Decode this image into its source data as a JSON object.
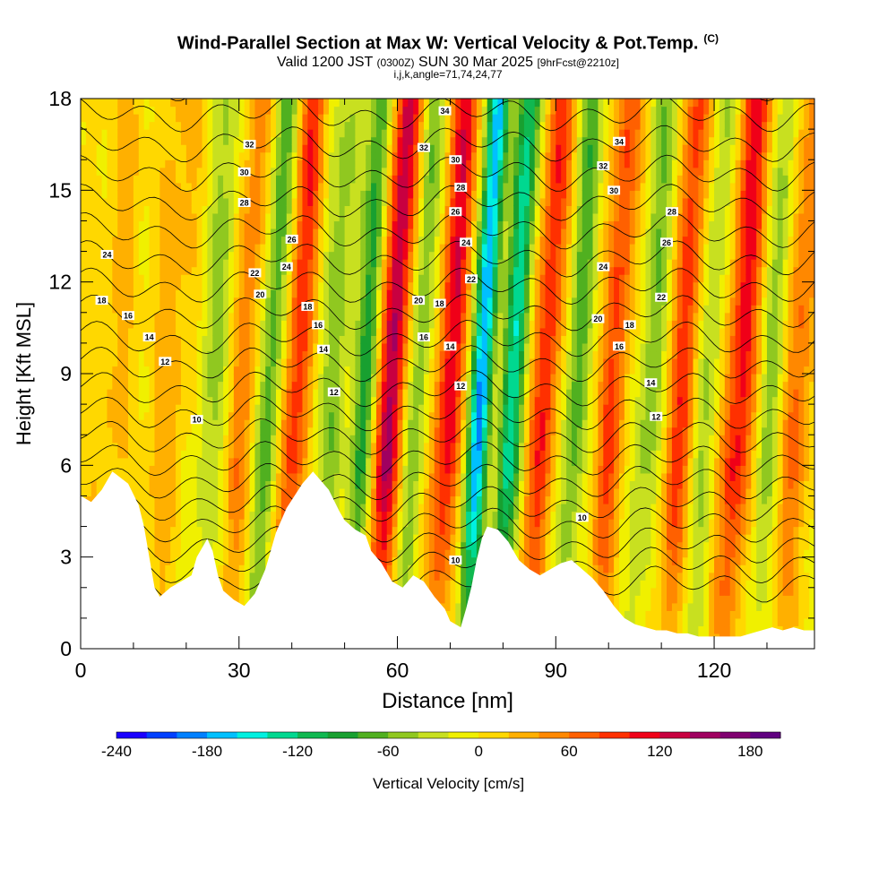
{
  "chart_data": {
    "type": "heatmap",
    "title": "Wind-Parallel Section at Max W: Vertical Velocity & Pot.Temp.",
    "copyright": "(C)",
    "subtitle_main": "Valid 1200 JST",
    "subtitle_utc": "(0300Z)",
    "subtitle_date": "SUN 30 Mar 2025",
    "subtitle_fcst": "[9hrFcst@2210z]",
    "subtitle_ijk": "i,j,k,angle=71,74,24,77",
    "xlabel": "Distance [nm]",
    "ylabel": "Height [Kft MSL]",
    "xlim": [
      0,
      139
    ],
    "ylim": [
      0,
      18
    ],
    "x_ticks": [
      0,
      30,
      60,
      90,
      120
    ],
    "y_ticks": [
      0,
      3,
      6,
      9,
      12,
      15,
      18
    ],
    "colorbar": {
      "label": "Vertical Velocity [cm/s]",
      "tick_labels": [
        "-240",
        "-180",
        "-120",
        "-60",
        "0",
        "60",
        "120",
        "180"
      ],
      "tick_values": [
        -240,
        -180,
        -120,
        -60,
        0,
        60,
        120,
        180
      ],
      "min": -240,
      "max": 200,
      "colors": [
        "#1a00ff",
        "#0040ff",
        "#0080ff",
        "#00c0ff",
        "#00f0e0",
        "#00d890",
        "#10b850",
        "#18a030",
        "#50b020",
        "#90c820",
        "#c8e020",
        "#f0f000",
        "#ffd800",
        "#ffb000",
        "#ff8800",
        "#ff6000",
        "#ff3000",
        "#f00018",
        "#c80040",
        "#a00060",
        "#800070",
        "#600080"
      ]
    },
    "contour_labels": [
      {
        "value": "32",
        "x": 32,
        "y": 16.5
      },
      {
        "value": "30",
        "x": 31,
        "y": 15.6
      },
      {
        "value": "28",
        "x": 31,
        "y": 14.6
      },
      {
        "value": "26",
        "x": 40,
        "y": 13.4
      },
      {
        "value": "24",
        "x": 5,
        "y": 12.9
      },
      {
        "value": "24",
        "x": 39,
        "y": 12.5
      },
      {
        "value": "22",
        "x": 33,
        "y": 12.3
      },
      {
        "value": "20",
        "x": 34,
        "y": 11.6
      },
      {
        "value": "18",
        "x": 4,
        "y": 11.4
      },
      {
        "value": "18",
        "x": 43,
        "y": 11.2
      },
      {
        "value": "16",
        "x": 9,
        "y": 10.9
      },
      {
        "value": "16",
        "x": 45,
        "y": 10.6
      },
      {
        "value": "14",
        "x": 13,
        "y": 10.2
      },
      {
        "value": "14",
        "x": 46,
        "y": 9.8
      },
      {
        "value": "12",
        "x": 16,
        "y": 9.4
      },
      {
        "value": "12",
        "x": 48,
        "y": 8.4
      },
      {
        "value": "10",
        "x": 22,
        "y": 7.5
      },
      {
        "value": "34",
        "x": 69,
        "y": 17.6
      },
      {
        "value": "32",
        "x": 65,
        "y": 16.4
      },
      {
        "value": "30",
        "x": 71,
        "y": 16.0
      },
      {
        "value": "28",
        "x": 72,
        "y": 15.1
      },
      {
        "value": "26",
        "x": 71,
        "y": 14.3
      },
      {
        "value": "24",
        "x": 73,
        "y": 13.3
      },
      {
        "value": "22",
        "x": 74,
        "y": 12.1
      },
      {
        "value": "20",
        "x": 64,
        "y": 11.4
      },
      {
        "value": "18",
        "x": 68,
        "y": 11.3
      },
      {
        "value": "16",
        "x": 65,
        "y": 10.2
      },
      {
        "value": "14",
        "x": 70,
        "y": 9.9
      },
      {
        "value": "12",
        "x": 72,
        "y": 8.6
      },
      {
        "value": "10",
        "x": 71,
        "y": 2.9
      },
      {
        "value": "34",
        "x": 102,
        "y": 16.6
      },
      {
        "value": "32",
        "x": 99,
        "y": 15.8
      },
      {
        "value": "30",
        "x": 101,
        "y": 15.0
      },
      {
        "value": "28",
        "x": 112,
        "y": 14.3
      },
      {
        "value": "26",
        "x": 111,
        "y": 13.3
      },
      {
        "value": "24",
        "x": 99,
        "y": 12.5
      },
      {
        "value": "22",
        "x": 110,
        "y": 11.5
      },
      {
        "value": "20",
        "x": 98,
        "y": 10.8
      },
      {
        "value": "18",
        "x": 104,
        "y": 10.6
      },
      {
        "value": "16",
        "x": 102,
        "y": 9.9
      },
      {
        "value": "14",
        "x": 108,
        "y": 8.7
      },
      {
        "value": "12",
        "x": 109,
        "y": 7.6
      },
      {
        "value": "10",
        "x": 95,
        "y": 4.3
      }
    ],
    "terrain": [
      [
        0,
        5.0
      ],
      [
        2,
        4.8
      ],
      [
        4,
        5.2
      ],
      [
        6,
        5.8
      ],
      [
        9,
        5.4
      ],
      [
        11,
        4.7
      ],
      [
        12,
        4.0
      ],
      [
        13,
        3.0
      ],
      [
        14,
        2.0
      ],
      [
        15,
        1.7
      ],
      [
        17,
        2.0
      ],
      [
        19,
        2.2
      ],
      [
        21,
        2.4
      ],
      [
        22,
        3.0
      ],
      [
        24,
        3.6
      ],
      [
        25,
        3.2
      ],
      [
        26,
        2.4
      ],
      [
        27,
        1.9
      ],
      [
        29,
        1.6
      ],
      [
        31,
        1.4
      ],
      [
        33,
        1.8
      ],
      [
        35,
        2.6
      ],
      [
        37,
        3.8
      ],
      [
        39,
        4.6
      ],
      [
        42,
        5.4
      ],
      [
        44,
        5.8
      ],
      [
        47,
        5.2
      ],
      [
        49,
        4.5
      ],
      [
        50,
        4.2
      ],
      [
        52,
        3.9
      ],
      [
        54,
        3.7
      ],
      [
        55,
        3.2
      ],
      [
        57,
        2.8
      ],
      [
        59,
        2.2
      ],
      [
        61,
        2.0
      ],
      [
        63,
        2.4
      ],
      [
        65,
        2.2
      ],
      [
        67,
        1.7
      ],
      [
        69,
        1.3
      ],
      [
        70,
        0.9
      ],
      [
        72,
        0.7
      ],
      [
        73,
        1.3
      ],
      [
        74,
        2.0
      ],
      [
        75,
        2.9
      ],
      [
        76,
        3.6
      ],
      [
        77,
        4.0
      ],
      [
        79,
        3.9
      ],
      [
        81,
        3.5
      ],
      [
        83,
        2.9
      ],
      [
        85,
        2.6
      ],
      [
        87,
        2.4
      ],
      [
        89,
        2.6
      ],
      [
        91,
        2.8
      ],
      [
        93,
        2.9
      ],
      [
        95,
        2.6
      ],
      [
        97,
        2.3
      ],
      [
        99,
        1.9
      ],
      [
        101,
        1.4
      ],
      [
        103,
        1.0
      ],
      [
        105,
        0.8
      ],
      [
        107,
        0.7
      ],
      [
        109,
        0.6
      ],
      [
        111,
        0.6
      ],
      [
        113,
        0.5
      ],
      [
        115,
        0.5
      ],
      [
        117,
        0.4
      ],
      [
        119,
        0.4
      ],
      [
        121,
        0.4
      ],
      [
        123,
        0.4
      ],
      [
        125,
        0.4
      ],
      [
        127,
        0.5
      ],
      [
        129,
        0.6
      ],
      [
        131,
        0.7
      ],
      [
        133,
        0.6
      ],
      [
        135,
        0.7
      ],
      [
        137,
        0.6
      ],
      [
        139,
        0.6
      ]
    ],
    "bands": [
      {
        "x": 5,
        "half": 3.5,
        "w": 25
      },
      {
        "x": 16,
        "half": 4,
        "w": 30
      },
      {
        "x": 24,
        "half": 3,
        "w": -40
      },
      {
        "x": 30,
        "half": 2.5,
        "w": 55
      },
      {
        "x": 35,
        "half": 2.2,
        "w": -75
      },
      {
        "x": 40,
        "half": 2.5,
        "w": 95
      },
      {
        "x": 47,
        "half": 3.0,
        "w": -50
      },
      {
        "x": 53,
        "half": 2.0,
        "w": -85
      },
      {
        "x": 58,
        "half": 2.5,
        "w": 140
      },
      {
        "x": 63,
        "half": 2.0,
        "w": -60
      },
      {
        "x": 69,
        "half": 2.6,
        "w": 115
      },
      {
        "x": 75,
        "half": 2.0,
        "w": -180
      },
      {
        "x": 81,
        "half": 2.2,
        "w": -130
      },
      {
        "x": 87,
        "half": 2.5,
        "w": 100
      },
      {
        "x": 93,
        "half": 2.2,
        "w": -70
      },
      {
        "x": 100,
        "half": 2.5,
        "w": 85
      },
      {
        "x": 107,
        "half": 2.5,
        "w": -55
      },
      {
        "x": 113,
        "half": 2.5,
        "w": 90
      },
      {
        "x": 118,
        "half": 2.2,
        "w": -45
      },
      {
        "x": 124,
        "half": 2.8,
        "w": 110
      },
      {
        "x": 130,
        "half": 2.2,
        "w": -50
      },
      {
        "x": 135,
        "half": 3,
        "w": 60
      }
    ]
  }
}
